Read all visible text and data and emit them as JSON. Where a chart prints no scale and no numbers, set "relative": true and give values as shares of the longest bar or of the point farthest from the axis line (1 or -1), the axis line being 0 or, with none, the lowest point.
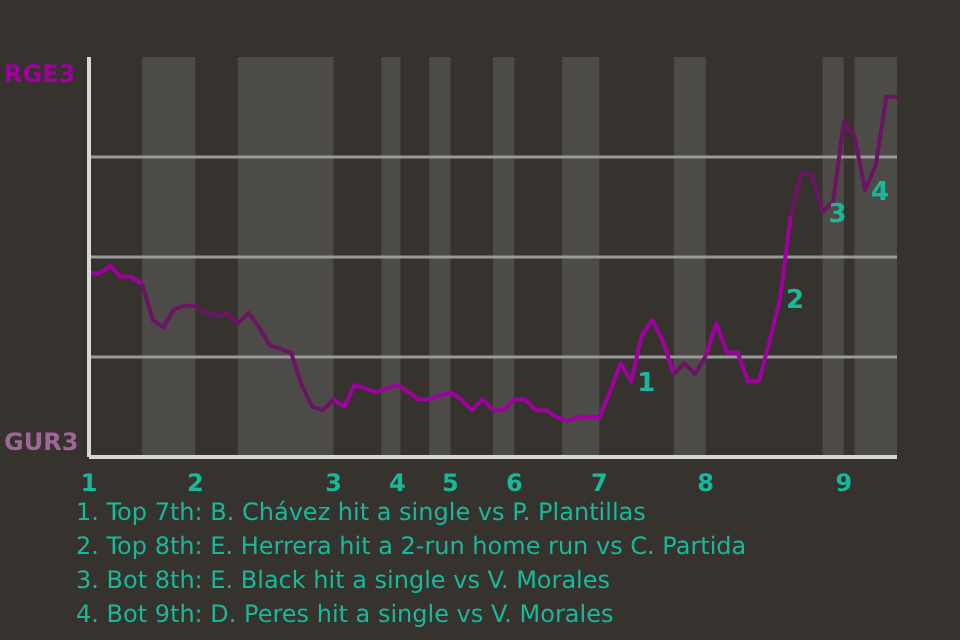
{
  "chart_data": {
    "type": "line",
    "relative": true,
    "categories": [
      "1",
      null,
      null,
      null,
      null,
      null,
      null,
      null,
      null,
      null,
      "2",
      null,
      null,
      null,
      null,
      null,
      null,
      null,
      null,
      null,
      null,
      null,
      null,
      "3",
      null,
      null,
      null,
      null,
      null,
      "4",
      null,
      null,
      null,
      null,
      "5",
      null,
      null,
      null,
      null,
      null,
      "6",
      null,
      null,
      null,
      null,
      null,
      null,
      null,
      "7",
      null,
      null,
      null,
      null,
      null,
      null,
      null,
      null,
      null,
      "8",
      null,
      null,
      null,
      null,
      null,
      null,
      null,
      null,
      null,
      null,
      null,
      null,
      "9",
      null,
      null,
      null,
      null,
      null
    ],
    "series": [
      {
        "color": "#a000a0",
        "values": [
          0.51,
          0.51,
          0.53,
          0.5,
          0.5,
          0.48,
          null,
          null,
          null,
          null,
          null,
          null,
          null,
          null,
          null,
          null,
          null,
          null,
          null,
          null,
          null,
          null,
          null,
          0.16,
          0.14,
          0.2,
          0.19,
          0.18,
          0.19,
          0.2,
          0.18,
          0.16,
          0.16,
          0.17,
          0.18,
          0.16,
          0.13,
          0.16,
          0.13,
          0.13,
          0.16,
          0.16,
          0.13,
          0.13,
          0.11,
          0.1,
          0.11,
          0.11,
          0.11,
          0.18,
          0.26,
          0.21,
          0.34,
          0.38,
          0.32,
          0.23,
          null,
          null,
          0.28,
          0.37,
          0.29,
          0.29,
          0.21,
          0.21,
          0.32,
          0.44,
          0.67,
          null,
          null,
          null,
          null,
          null,
          null,
          null,
          null,
          null,
          null
        ]
      },
      {
        "color": "#6a1463",
        "values": [
          null,
          null,
          null,
          null,
          null,
          0.48,
          0.38,
          0.36,
          0.41,
          0.42,
          0.42,
          0.4,
          0.39,
          0.4,
          0.37,
          0.4,
          0.36,
          0.31,
          0.3,
          0.29,
          0.2,
          0.14,
          0.13,
          0.16,
          null,
          null,
          null,
          null,
          null,
          null,
          null,
          null,
          null,
          null,
          null,
          null,
          null,
          null,
          null,
          null,
          null,
          null,
          null,
          null,
          null,
          null,
          null,
          null,
          null,
          null,
          null,
          null,
          null,
          null,
          null,
          0.23,
          0.26,
          0.23,
          0.28,
          null,
          null,
          null,
          null,
          null,
          null,
          null,
          0.67,
          0.79,
          0.78,
          0.68,
          0.71,
          0.93,
          0.89,
          0.74,
          0.81,
          1,
          1
        ]
      }
    ],
    "grid": "y",
    "marker": "none",
    "line_style": "solid",
    "annotations": [
      "RGE3",
      "GUR3",
      "1",
      "2",
      "3",
      "4",
      "1. Top 7th: B. Chávez hit a single vs P. Plantillas",
      "2. Top 8th: E. Herrera hit a 2-run home run vs C. Partida",
      "3. Bot 8th: E. Black hit a single vs V. Morales",
      "4. Bot 9th: D. Peres hit a single vs V. Morales"
    ]
  }
}
